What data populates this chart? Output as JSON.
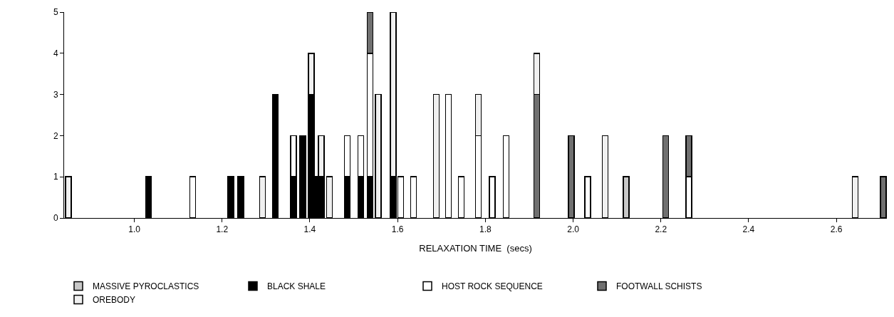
{
  "chart_data": {
    "type": "bar",
    "stacked": true,
    "xlabel": "RELAXATION TIME  (secs)",
    "x": [
      0.85,
      1.032,
      1.133,
      1.22,
      1.243,
      1.292,
      1.321,
      1.363,
      1.384,
      1.403,
      1.413,
      1.426,
      1.445,
      1.485,
      1.516,
      1.537,
      1.556,
      1.59,
      1.607,
      1.636,
      1.688,
      1.716,
      1.745,
      1.784,
      1.816,
      1.847,
      1.917,
      1.996,
      2.033,
      2.073,
      2.121,
      2.211,
      2.264,
      2.643,
      2.707
    ],
    "series": [
      {
        "name": "MASSIVE PYROCLASTICS",
        "color": "#c8c8c8",
        "values": [
          null,
          null,
          null,
          null,
          null,
          null,
          null,
          null,
          null,
          null,
          null,
          null,
          null,
          null,
          null,
          null,
          null,
          null,
          null,
          null,
          null,
          null,
          null,
          null,
          null,
          null,
          null,
          null,
          null,
          null,
          1,
          null,
          null,
          null,
          null
        ]
      },
      {
        "name": "BLACK SHALE",
        "color": "#000000",
        "values": [
          null,
          1,
          null,
          1,
          1,
          null,
          3,
          1,
          2,
          3,
          1,
          1,
          null,
          1,
          1,
          1,
          null,
          1,
          null,
          null,
          null,
          null,
          null,
          null,
          null,
          null,
          null,
          null,
          null,
          null,
          null,
          null,
          null,
          null,
          null
        ]
      },
      {
        "name": "HOST ROCK SEQUENCE",
        "color": "#ffffff",
        "values": [
          null,
          null,
          1,
          null,
          null,
          null,
          null,
          1,
          null,
          null,
          null,
          null,
          null,
          1,
          1,
          3,
          null,
          null,
          1,
          1,
          null,
          3,
          1,
          2,
          1,
          2,
          null,
          null,
          1,
          null,
          null,
          null,
          1,
          null,
          null
        ]
      },
      {
        "name": "FOOTWALL SCHISTS",
        "color": "#707070",
        "values": [
          null,
          null,
          null,
          null,
          null,
          null,
          null,
          null,
          null,
          null,
          null,
          null,
          null,
          null,
          null,
          1,
          null,
          null,
          null,
          null,
          null,
          null,
          null,
          null,
          null,
          null,
          3,
          2,
          null,
          null,
          null,
          2,
          1,
          null,
          1
        ]
      },
      {
        "name": "OREBODY",
        "color": "#f0f0f0",
        "values": [
          1,
          null,
          null,
          null,
          null,
          1,
          null,
          null,
          null,
          1,
          null,
          1,
          1,
          null,
          null,
          null,
          3,
          4,
          null,
          null,
          3,
          null,
          null,
          1,
          null,
          null,
          1,
          null,
          null,
          2,
          null,
          null,
          null,
          1,
          null
        ]
      }
    ],
    "xlim": [
      0.84,
      2.715
    ],
    "xticks": [
      {
        "value": 1.0,
        "label": "1.0"
      },
      {
        "value": 1.2,
        "label": "1.2"
      },
      {
        "value": 1.4,
        "label": "1.4"
      },
      {
        "value": 1.6,
        "label": "1.6"
      },
      {
        "value": 1.8,
        "label": "1.8"
      },
      {
        "value": 2.0,
        "label": "2.0"
      },
      {
        "value": 2.2,
        "label": "2.2"
      },
      {
        "value": 2.4,
        "label": "2.4"
      },
      {
        "value": 2.6,
        "label": "2.6"
      }
    ],
    "ylim": [
      0,
      5
    ],
    "yticks": [
      0,
      1,
      2,
      3,
      4,
      5
    ],
    "legend": "bottom"
  }
}
